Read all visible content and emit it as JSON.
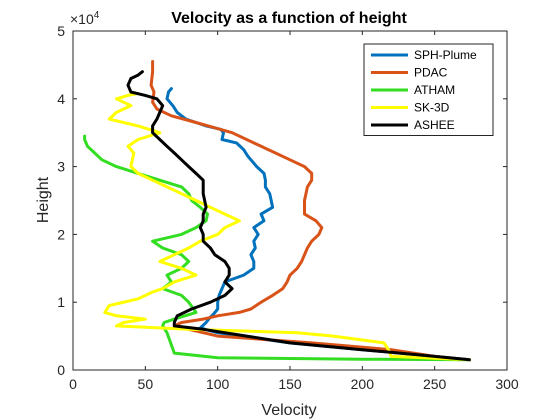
{
  "chart_data": {
    "type": "line",
    "title": "Velocity as a function of height",
    "xlabel": "Velocity",
    "ylabel": "Height",
    "xlim": [
      0,
      300
    ],
    "ylim": [
      0,
      50000
    ],
    "xticks": [
      "0",
      "50",
      "100",
      "150",
      "200",
      "250",
      "300"
    ],
    "yticks": [
      "0",
      "1",
      "2",
      "3",
      "4",
      "5"
    ],
    "y_exponent_label": "×10",
    "y_exponent_power": "4",
    "grid": false,
    "legend_position": "top-right",
    "series": [
      {
        "name": "SPH-Plume",
        "color": "#0072BD",
        "points": [
          [
            274,
            1500
          ],
          [
            250,
            2000
          ],
          [
            200,
            3000
          ],
          [
            150,
            4000
          ],
          [
            100,
            5500
          ],
          [
            88,
            6200
          ],
          [
            92,
            7000
          ],
          [
            95,
            7800
          ],
          [
            97,
            8200
          ],
          [
            100,
            9000
          ],
          [
            100,
            10000
          ],
          [
            101,
            11000
          ],
          [
            103,
            12000
          ],
          [
            105,
            13000
          ],
          [
            118,
            14000
          ],
          [
            125,
            15000
          ],
          [
            125,
            16000
          ],
          [
            123,
            17000
          ],
          [
            126,
            18000
          ],
          [
            125,
            19000
          ],
          [
            128,
            20000
          ],
          [
            125,
            21000
          ],
          [
            132,
            22000
          ],
          [
            130,
            23000
          ],
          [
            138,
            24000
          ],
          [
            137,
            25000
          ],
          [
            136,
            26000
          ],
          [
            133,
            27000
          ],
          [
            133,
            28000
          ],
          [
            132,
            29000
          ],
          [
            127,
            30000
          ],
          [
            123,
            31000
          ],
          [
            121,
            31500
          ],
          [
            118,
            32500
          ],
          [
            113,
            33500
          ],
          [
            103,
            34000
          ],
          [
            104,
            35000
          ],
          [
            102,
            35500
          ],
          [
            92,
            36000
          ],
          [
            85,
            36500
          ],
          [
            78,
            37000
          ],
          [
            72,
            38000
          ],
          [
            69,
            39000
          ],
          [
            65,
            40000
          ],
          [
            66,
            41000
          ],
          [
            68,
            41500
          ]
        ]
      },
      {
        "name": "PDAC",
        "color": "#D95319",
        "points": [
          [
            274,
            1500
          ],
          [
            250,
            2000
          ],
          [
            220,
            3000
          ],
          [
            165,
            4000
          ],
          [
            100,
            5000
          ],
          [
            80,
            6000
          ],
          [
            70,
            6500
          ],
          [
            75,
            7000
          ],
          [
            90,
            7500
          ],
          [
            100,
            8000
          ],
          [
            115,
            8500
          ],
          [
            123,
            9000
          ],
          [
            130,
            10000
          ],
          [
            138,
            11000
          ],
          [
            145,
            12000
          ],
          [
            148,
            13000
          ],
          [
            150,
            14000
          ],
          [
            155,
            15000
          ],
          [
            158,
            16000
          ],
          [
            162,
            18000
          ],
          [
            165,
            19000
          ],
          [
            170,
            20000
          ],
          [
            172,
            21000
          ],
          [
            168,
            22000
          ],
          [
            160,
            23000
          ],
          [
            160,
            25000
          ],
          [
            162,
            27000
          ],
          [
            165,
            28000
          ],
          [
            165,
            29000
          ],
          [
            160,
            30000
          ],
          [
            150,
            31000
          ],
          [
            140,
            32000
          ],
          [
            125,
            33500
          ],
          [
            110,
            35000
          ],
          [
            85,
            36500
          ],
          [
            68,
            37500
          ],
          [
            58,
            38500
          ],
          [
            55,
            39500
          ],
          [
            56,
            41000
          ],
          [
            54,
            42000
          ],
          [
            55,
            44000
          ],
          [
            55,
            45500
          ]
        ]
      },
      {
        "name": "ATHAM",
        "color": "#33DD22",
        "points": [
          [
            274,
            1500
          ],
          [
            200,
            1600
          ],
          [
            100,
            1800
          ],
          [
            70,
            2500
          ],
          [
            65,
            5500
          ],
          [
            62,
            6500
          ],
          [
            63,
            7000
          ],
          [
            70,
            7500
          ],
          [
            85,
            8500
          ],
          [
            80,
            10000
          ],
          [
            75,
            11000
          ],
          [
            62,
            12000
          ],
          [
            68,
            13000
          ],
          [
            65,
            14000
          ],
          [
            75,
            15000
          ],
          [
            80,
            16000
          ],
          [
            75,
            17000
          ],
          [
            62,
            18000
          ],
          [
            55,
            19000
          ],
          [
            75,
            20000
          ],
          [
            85,
            21000
          ],
          [
            92,
            22000
          ],
          [
            93,
            23000
          ],
          [
            88,
            24000
          ],
          [
            82,
            25000
          ],
          [
            80,
            26000
          ],
          [
            75,
            27000
          ],
          [
            60,
            28000
          ],
          [
            45,
            29000
          ],
          [
            30,
            30000
          ],
          [
            20,
            31000
          ],
          [
            15,
            32000
          ],
          [
            10,
            33000
          ],
          [
            8,
            34000
          ],
          [
            8,
            34500
          ]
        ]
      },
      {
        "name": "SK-3D",
        "color": "#FFFF00",
        "points": [
          [
            274,
            1500
          ],
          [
            220,
            2000
          ],
          [
            218,
            3000
          ],
          [
            215,
            4000
          ],
          [
            180,
            5000
          ],
          [
            155,
            5500
          ],
          [
            80,
            6000
          ],
          [
            30,
            6500
          ],
          [
            35,
            7000
          ],
          [
            50,
            7500
          ],
          [
            30,
            8000
          ],
          [
            22,
            8500
          ],
          [
            25,
            9500
          ],
          [
            45,
            10500
          ],
          [
            55,
            11500
          ],
          [
            62,
            12000
          ],
          [
            70,
            13000
          ],
          [
            85,
            14000
          ],
          [
            75,
            15000
          ],
          [
            60,
            16000
          ],
          [
            70,
            17000
          ],
          [
            80,
            18000
          ],
          [
            88,
            19000
          ],
          [
            100,
            20000
          ],
          [
            105,
            21000
          ],
          [
            115,
            22000
          ],
          [
            105,
            23000
          ],
          [
            95,
            24000
          ],
          [
            85,
            25000
          ],
          [
            75,
            26000
          ],
          [
            65,
            27000
          ],
          [
            55,
            28000
          ],
          [
            45,
            29000
          ],
          [
            40,
            30000
          ],
          [
            42,
            32000
          ],
          [
            38,
            33000
          ],
          [
            45,
            34000
          ],
          [
            60,
            35000
          ],
          [
            45,
            36000
          ],
          [
            25,
            37000
          ],
          [
            30,
            38000
          ],
          [
            40,
            39000
          ],
          [
            30,
            40000
          ],
          [
            38,
            40500
          ],
          [
            45,
            40800
          ]
        ]
      },
      {
        "name": "ASHEE",
        "color": "#000000",
        "points": [
          [
            274,
            1500
          ],
          [
            250,
            2000
          ],
          [
            200,
            3000
          ],
          [
            150,
            4000
          ],
          [
            120,
            5000
          ],
          [
            90,
            6000
          ],
          [
            70,
            6500
          ],
          [
            70,
            7000
          ],
          [
            72,
            8000
          ],
          [
            82,
            9000
          ],
          [
            95,
            10000
          ],
          [
            105,
            11000
          ],
          [
            110,
            12000
          ],
          [
            105,
            13000
          ],
          [
            108,
            14000
          ],
          [
            108,
            15000
          ],
          [
            105,
            16000
          ],
          [
            98,
            17000
          ],
          [
            95,
            18000
          ],
          [
            90,
            19000
          ],
          [
            90,
            20000
          ],
          [
            88,
            21000
          ],
          [
            90,
            22000
          ],
          [
            90,
            23000
          ],
          [
            92,
            24000
          ],
          [
            90,
            26000
          ],
          [
            90,
            28000
          ],
          [
            85,
            29000
          ],
          [
            80,
            30000
          ],
          [
            75,
            31000
          ],
          [
            70,
            32000
          ],
          [
            65,
            33000
          ],
          [
            60,
            34000
          ],
          [
            55,
            35000
          ],
          [
            55,
            36000
          ],
          [
            58,
            37000
          ],
          [
            60,
            38000
          ],
          [
            62,
            39000
          ],
          [
            58,
            40000
          ],
          [
            50,
            40500
          ],
          [
            40,
            41000
          ],
          [
            38,
            42000
          ],
          [
            40,
            43000
          ],
          [
            45,
            43500
          ],
          [
            48,
            44000
          ]
        ]
      }
    ]
  }
}
